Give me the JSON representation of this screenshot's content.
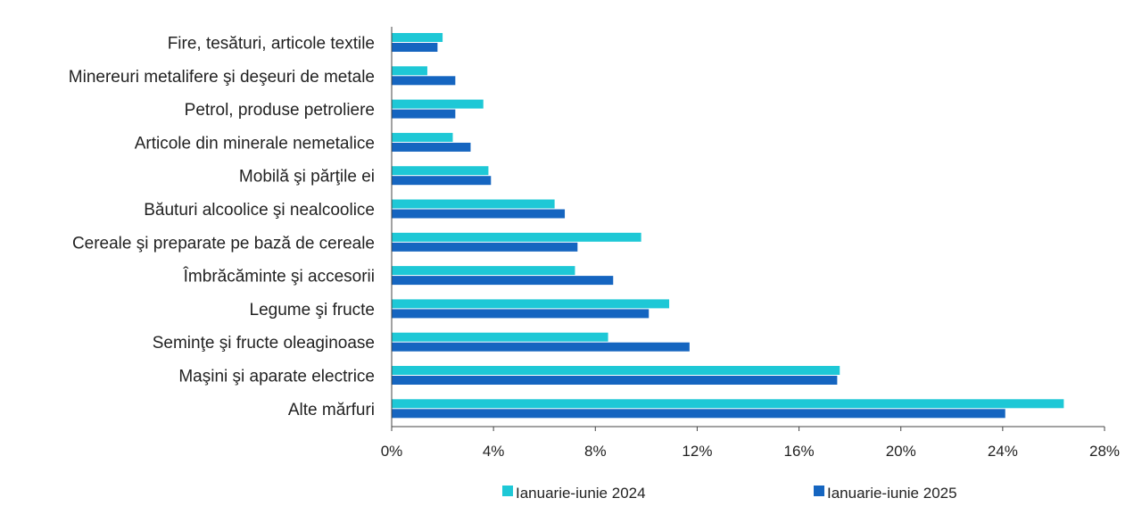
{
  "chart_data": {
    "type": "bar",
    "orientation": "horizontal",
    "title": "",
    "xlabel": "",
    "ylabel": "",
    "xlim": [
      0,
      28
    ],
    "x_ticks": [
      0,
      4,
      8,
      12,
      16,
      20,
      24,
      28
    ],
    "x_tick_labels": [
      "0%",
      "4%",
      "8%",
      "12%",
      "16%",
      "20%",
      "24%",
      "28%"
    ],
    "grid": false,
    "legend_position": "bottom",
    "categories": [
      "Fire, tesături, articole textile",
      "Minereuri metalifere şi deşeuri de metale",
      "Petrol, produse petroliere",
      "Articole din minerale nemetalice",
      "Mobilă şi părţile ei",
      "Băuturi alcoolice şi nealcoolice",
      "Cereale şi preparate pe bază de cereale",
      "Îmbrăcăminte şi accesorii",
      "Legume şi fructe",
      "Seminţe şi fructe oleaginoase",
      "Maşini şi aparate electrice",
      "Alte mărfuri"
    ],
    "series": [
      {
        "name": "Ianuarie-iunie 2024",
        "color": "#1ec8d6",
        "values": [
          2.0,
          1.4,
          3.6,
          2.4,
          3.8,
          6.4,
          9.8,
          7.2,
          10.9,
          8.5,
          17.6,
          26.4
        ]
      },
      {
        "name": "Ianuarie-iunie 2025",
        "color": "#1565c0",
        "values": [
          1.8,
          2.5,
          2.5,
          3.1,
          3.9,
          6.8,
          7.3,
          8.7,
          10.1,
          11.7,
          17.5,
          24.1
        ]
      }
    ]
  }
}
